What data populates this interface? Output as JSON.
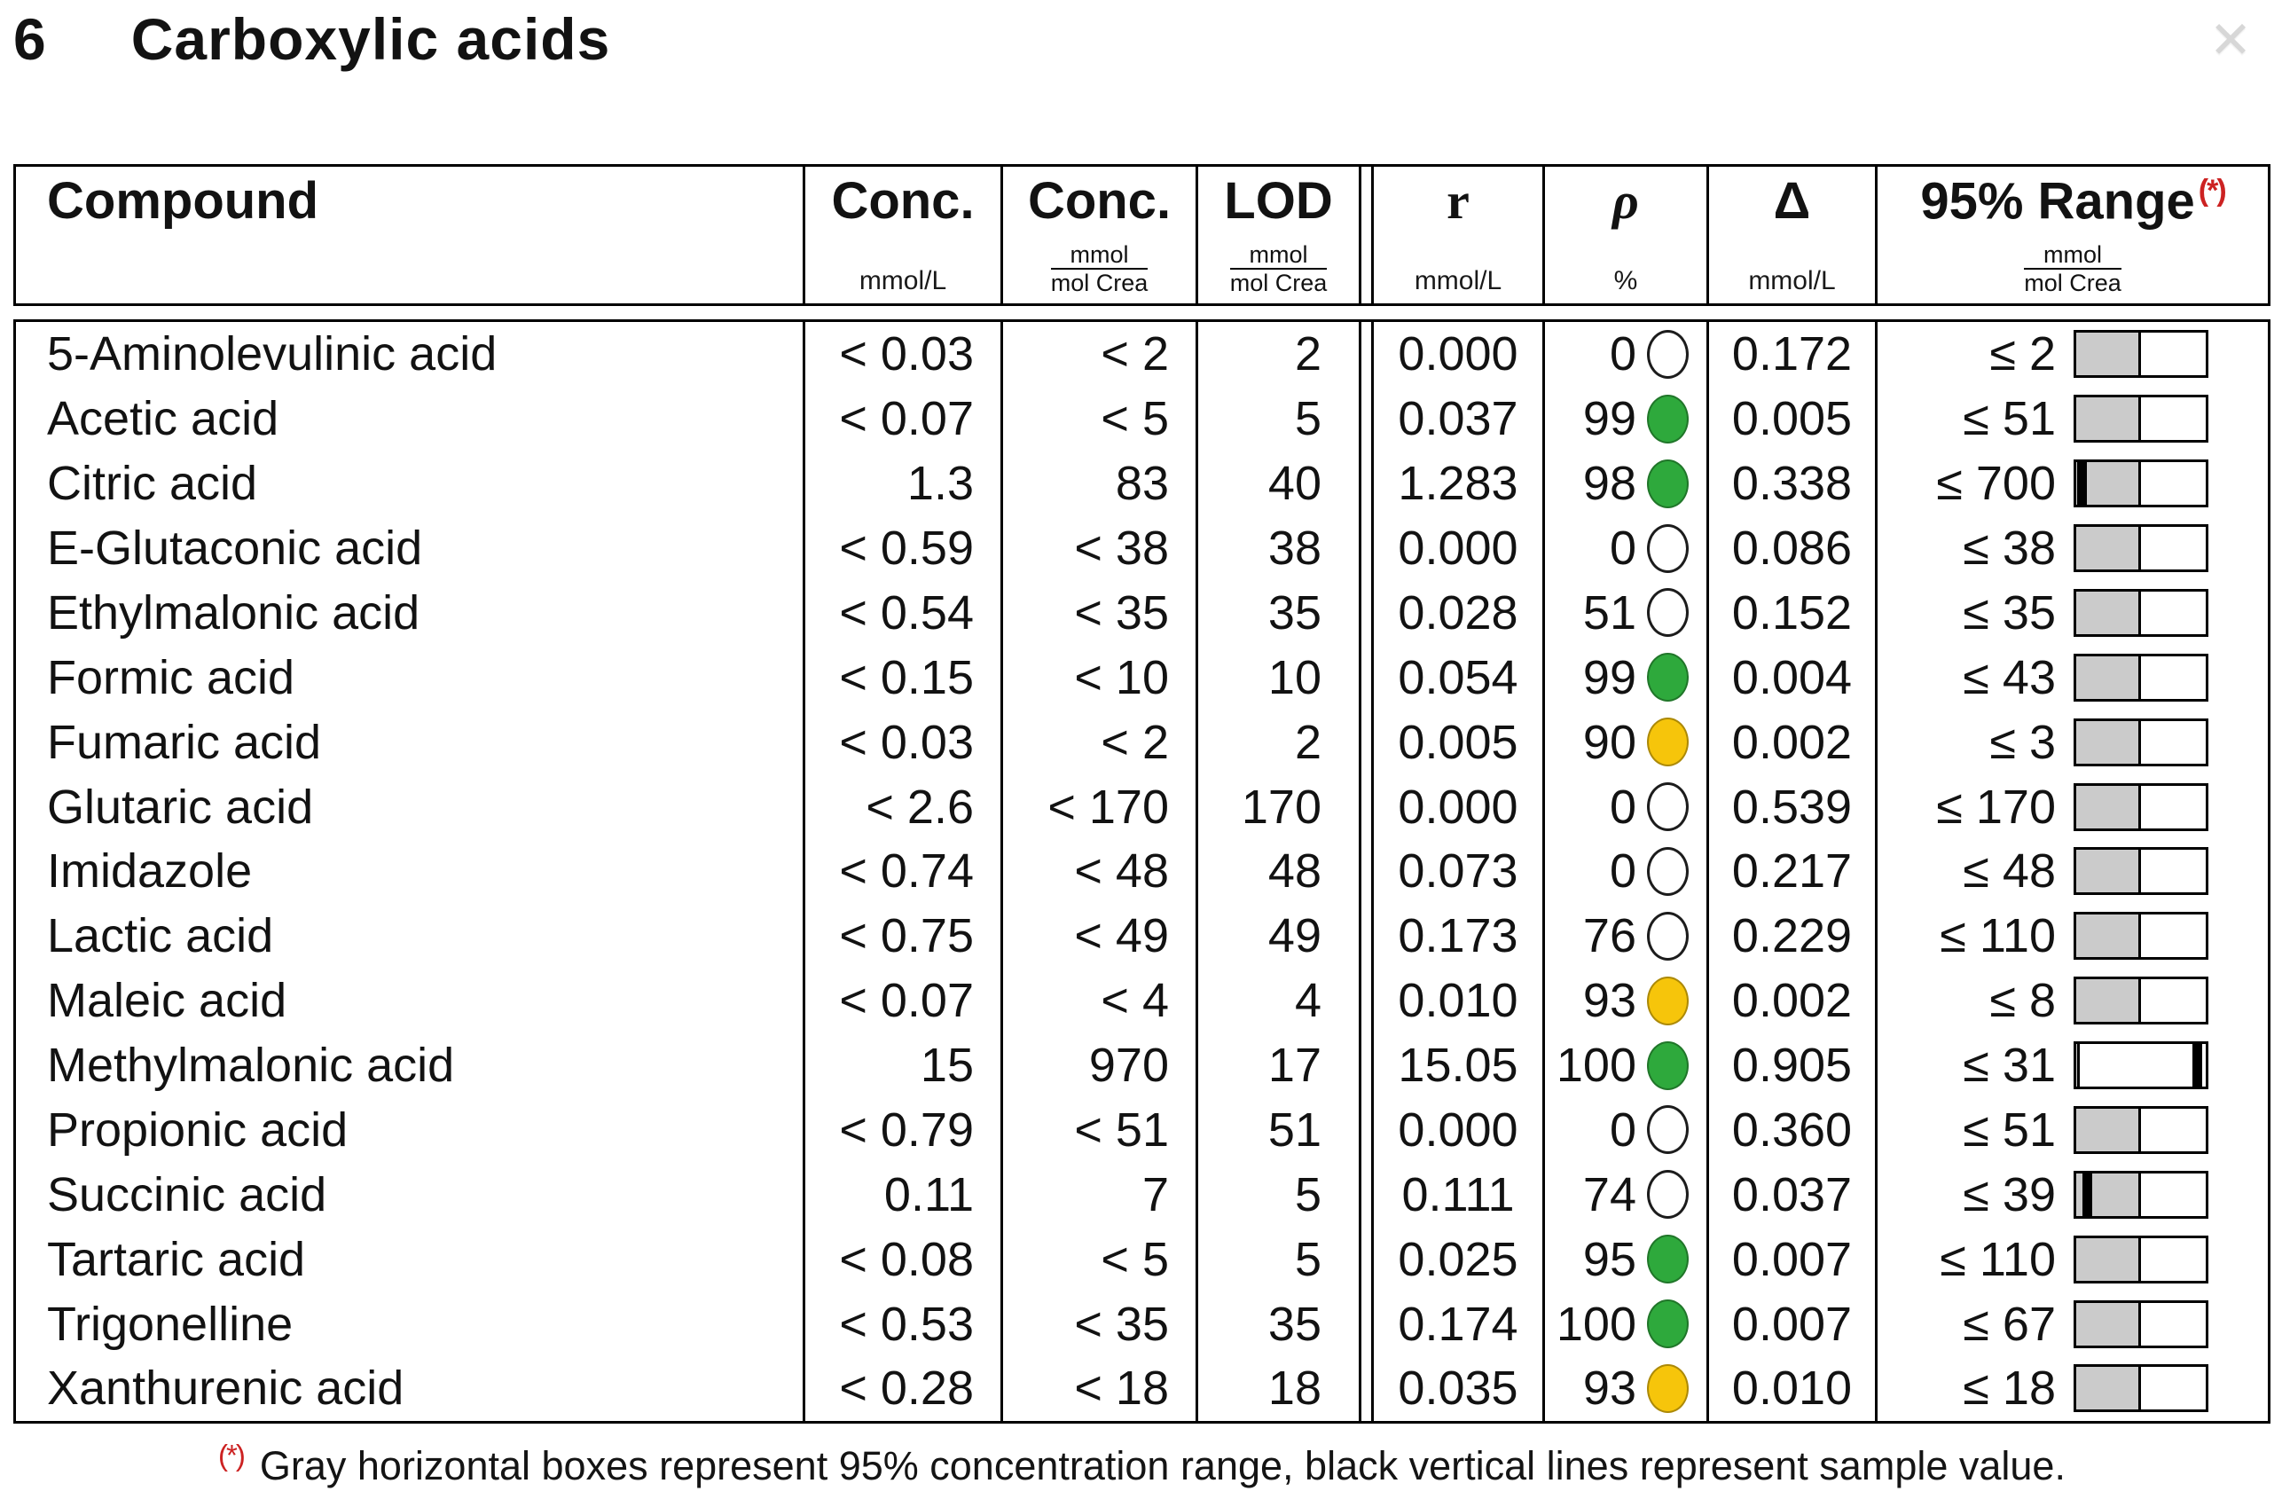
{
  "page": {
    "section_number": "6",
    "title": "Carboxylic acids",
    "close_glyph": "✕"
  },
  "colors": {
    "green": "#2EA93C",
    "yellow": "#F6C50B",
    "bar_gray": "#CBCBCB",
    "red": "#CC2222",
    "close_gray": "#D7D7D7"
  },
  "table": {
    "header": {
      "compound": "Compound",
      "conc_l": {
        "label": "Conc.",
        "unit": "mmol/L"
      },
      "conc_crea": {
        "label": "Conc.",
        "unit_num": "mmol",
        "unit_den": "mol Crea"
      },
      "lod": {
        "label": "LOD",
        "unit_num": "mmol",
        "unit_den": "mol Crea"
      },
      "r": {
        "label": "r",
        "unit": "mmol/L"
      },
      "rho": {
        "label": "ρ",
        "unit": "%"
      },
      "delta": {
        "label": "Δ",
        "unit": "mmol/L"
      },
      "range": {
        "label": "95% Range",
        "marker": "(*)",
        "unit_num": "mmol",
        "unit_den": "mol Crea"
      }
    },
    "rows": [
      {
        "name": "5-Aminolevulinic acid",
        "conc_l": "< 0.03",
        "conc_crea": "< 2",
        "lod": "2",
        "r": "0.000",
        "rho": "0",
        "status": "none",
        "delta": "0.172",
        "range": "≤ 2",
        "bar_gray": 50,
        "bar_sample": null
      },
      {
        "name": "Acetic acid",
        "conc_l": "< 0.07",
        "conc_crea": "< 5",
        "lod": "5",
        "r": "0.037",
        "rho": "99",
        "status": "green",
        "delta": "0.005",
        "range": "≤ 51",
        "bar_gray": 50,
        "bar_sample": null
      },
      {
        "name": "Citric acid",
        "conc_l": "1.3",
        "conc_crea": "83",
        "lod": "40",
        "r": "1.283",
        "rho": "98",
        "status": "green",
        "delta": "0.338",
        "range": "≤ 700",
        "bar_gray": 50,
        "bar_sample": 4
      },
      {
        "name": "E-Glutaconic acid",
        "conc_l": "< 0.59",
        "conc_crea": "< 38",
        "lod": "38",
        "r": "0.000",
        "rho": "0",
        "status": "none",
        "delta": "0.086",
        "range": "≤ 38",
        "bar_gray": 50,
        "bar_sample": null
      },
      {
        "name": "Ethylmalonic acid",
        "conc_l": "< 0.54",
        "conc_crea": "< 35",
        "lod": "35",
        "r": "0.028",
        "rho": "51",
        "status": "none",
        "delta": "0.152",
        "range": "≤ 35",
        "bar_gray": 50,
        "bar_sample": null
      },
      {
        "name": "Formic acid",
        "conc_l": "< 0.15",
        "conc_crea": "< 10",
        "lod": "10",
        "r": "0.054",
        "rho": "99",
        "status": "green",
        "delta": "0.004",
        "range": "≤ 43",
        "bar_gray": 50,
        "bar_sample": null
      },
      {
        "name": "Fumaric acid",
        "conc_l": "< 0.03",
        "conc_crea": "< 2",
        "lod": "2",
        "r": "0.005",
        "rho": "90",
        "status": "yellow",
        "delta": "0.002",
        "range": "≤ 3",
        "bar_gray": 50,
        "bar_sample": null
      },
      {
        "name": "Glutaric acid",
        "conc_l": "< 2.6",
        "conc_crea": "< 170",
        "lod": "170",
        "r": "0.000",
        "rho": "0",
        "status": "none",
        "delta": "0.539",
        "range": "≤ 170",
        "bar_gray": 50,
        "bar_sample": null
      },
      {
        "name": "Imidazole",
        "conc_l": "< 0.74",
        "conc_crea": "< 48",
        "lod": "48",
        "r": "0.073",
        "rho": "0",
        "status": "none",
        "delta": "0.217",
        "range": "≤ 48",
        "bar_gray": 50,
        "bar_sample": null
      },
      {
        "name": "Lactic acid",
        "conc_l": "< 0.75",
        "conc_crea": "< 49",
        "lod": "49",
        "r": "0.173",
        "rho": "76",
        "status": "none",
        "delta": "0.229",
        "range": "≤ 110",
        "bar_gray": 50,
        "bar_sample": null
      },
      {
        "name": "Maleic acid",
        "conc_l": "< 0.07",
        "conc_crea": "< 4",
        "lod": "4",
        "r": "0.010",
        "rho": "93",
        "status": "yellow",
        "delta": "0.002",
        "range": "≤ 8",
        "bar_gray": 50,
        "bar_sample": null
      },
      {
        "name": "Methylmalonic acid",
        "conc_l": "15",
        "conc_crea": "970",
        "lod": "17",
        "r": "15.05",
        "rho": "100",
        "status": "green",
        "delta": "0.905",
        "range": "≤ 31",
        "bar_gray": 3,
        "bar_sample": 93
      },
      {
        "name": "Propionic acid",
        "conc_l": "< 0.79",
        "conc_crea": "< 51",
        "lod": "51",
        "r": "0.000",
        "rho": "0",
        "status": "none",
        "delta": "0.360",
        "range": "≤ 51",
        "bar_gray": 50,
        "bar_sample": null
      },
      {
        "name": "Succinic acid",
        "conc_l": "0.11",
        "conc_crea": "7",
        "lod": "5",
        "r": "0.111",
        "rho": "74",
        "status": "none",
        "delta": "0.037",
        "range": "≤ 39",
        "bar_gray": 50,
        "bar_sample": 8
      },
      {
        "name": "Tartaric acid",
        "conc_l": "< 0.08",
        "conc_crea": "< 5",
        "lod": "5",
        "r": "0.025",
        "rho": "95",
        "status": "green",
        "delta": "0.007",
        "range": "≤ 110",
        "bar_gray": 50,
        "bar_sample": null
      },
      {
        "name": "Trigonelline",
        "conc_l": "< 0.53",
        "conc_crea": "< 35",
        "lod": "35",
        "r": "0.174",
        "rho": "100",
        "status": "green",
        "delta": "0.007",
        "range": "≤ 67",
        "bar_gray": 50,
        "bar_sample": null
      },
      {
        "name": "Xanthurenic acid",
        "conc_l": "< 0.28",
        "conc_crea": "< 18",
        "lod": "18",
        "r": "0.035",
        "rho": "93",
        "status": "yellow",
        "delta": "0.010",
        "range": "≤ 18",
        "bar_gray": 50,
        "bar_sample": null
      }
    ]
  },
  "footnote": {
    "marker": "(*)",
    "text": "Gray horizontal boxes represent 95% concentration range, black vertical lines represent sample value."
  }
}
